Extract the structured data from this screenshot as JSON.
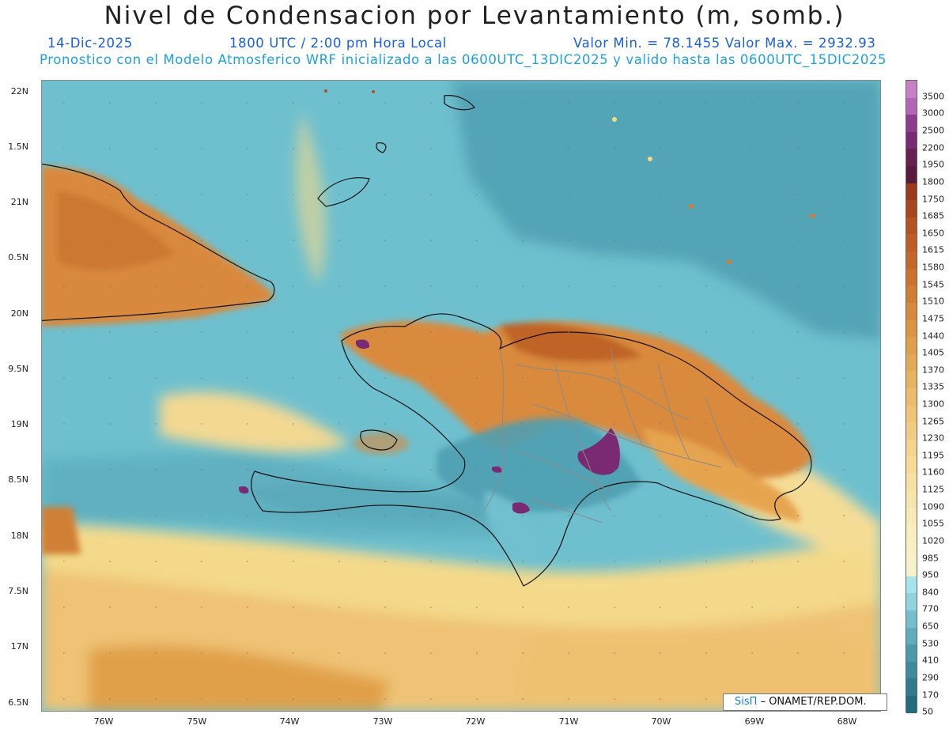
{
  "title": "Nivel de Condensacion por Levantamiento (m, somb.)",
  "date": "14-Dic-2025",
  "time": "1800 UTC / 2:00 pm Hora Local",
  "minmax": "Valor Min. = 78.1455  Valor Max. = 2932.93",
  "subtitle": "Pronostico con el Modelo Atmosferico WRF inicializado a las 0600UTC_13DIC2025 y valido hasta las  0600UTC_15DIC2025",
  "credit": {
    "logo": "SisΠ",
    "text": "– ONAMET/REP.DOM."
  },
  "lat_labels": [
    "22N",
    "1.5N",
    "21N",
    "0.5N",
    "20N",
    "9.5N",
    "19N",
    "8.5N",
    "18N",
    "7.5N",
    "17N",
    "6.5N"
  ],
  "lon_labels": [
    "76W",
    "75W",
    "74W",
    "73W",
    "72W",
    "71W",
    "70W",
    "69W",
    "68W"
  ],
  "colorbar": {
    "labels": [
      "3500",
      "3000",
      "2500",
      "2200",
      "1950",
      "1800",
      "1750",
      "1685",
      "1650",
      "1615",
      "1580",
      "1545",
      "1510",
      "1475",
      "1440",
      "1405",
      "1370",
      "1335",
      "1300",
      "1265",
      "1230",
      "1195",
      "1160",
      "1125",
      "1090",
      "1055",
      "1020",
      "985",
      "950",
      "840",
      "770",
      "650",
      "530",
      "410",
      "290",
      "170",
      "50"
    ],
    "colors": [
      "#c77fc8",
      "#b366b8",
      "#8e3d8e",
      "#7a2a72",
      "#66204f",
      "#5a1a3c",
      "#9a3a1c",
      "#a8461e",
      "#b35222",
      "#bd5d25",
      "#c46829",
      "#ca732d",
      "#d07e33",
      "#d6893a",
      "#db9442",
      "#e09f4b",
      "#e4a955",
      "#e8b35f",
      "#ecbc6a",
      "#efc475",
      "#f2cc80",
      "#f4d38b",
      "#f6da96",
      "#f7e0a1",
      "#f8e5ab",
      "#f9eab5",
      "#faeebe",
      "#f9f1c6",
      "#f6f2cc",
      "#a6e3ec",
      "#8ed3de",
      "#73bfcc",
      "#5eadbb",
      "#4b9aaa",
      "#3c8a9b",
      "#2f7a8c",
      "#236c7e"
    ]
  },
  "colors": {
    "ocean": "#6fc0cf",
    "ocean_dark": "#4fa1b3",
    "land_warm": "#d9893d",
    "land_hot": "#b65a22",
    "peak": "#7a2a72",
    "yellow": "#f4d98a",
    "outline": "#111111",
    "borders": "#8a8a8a"
  }
}
